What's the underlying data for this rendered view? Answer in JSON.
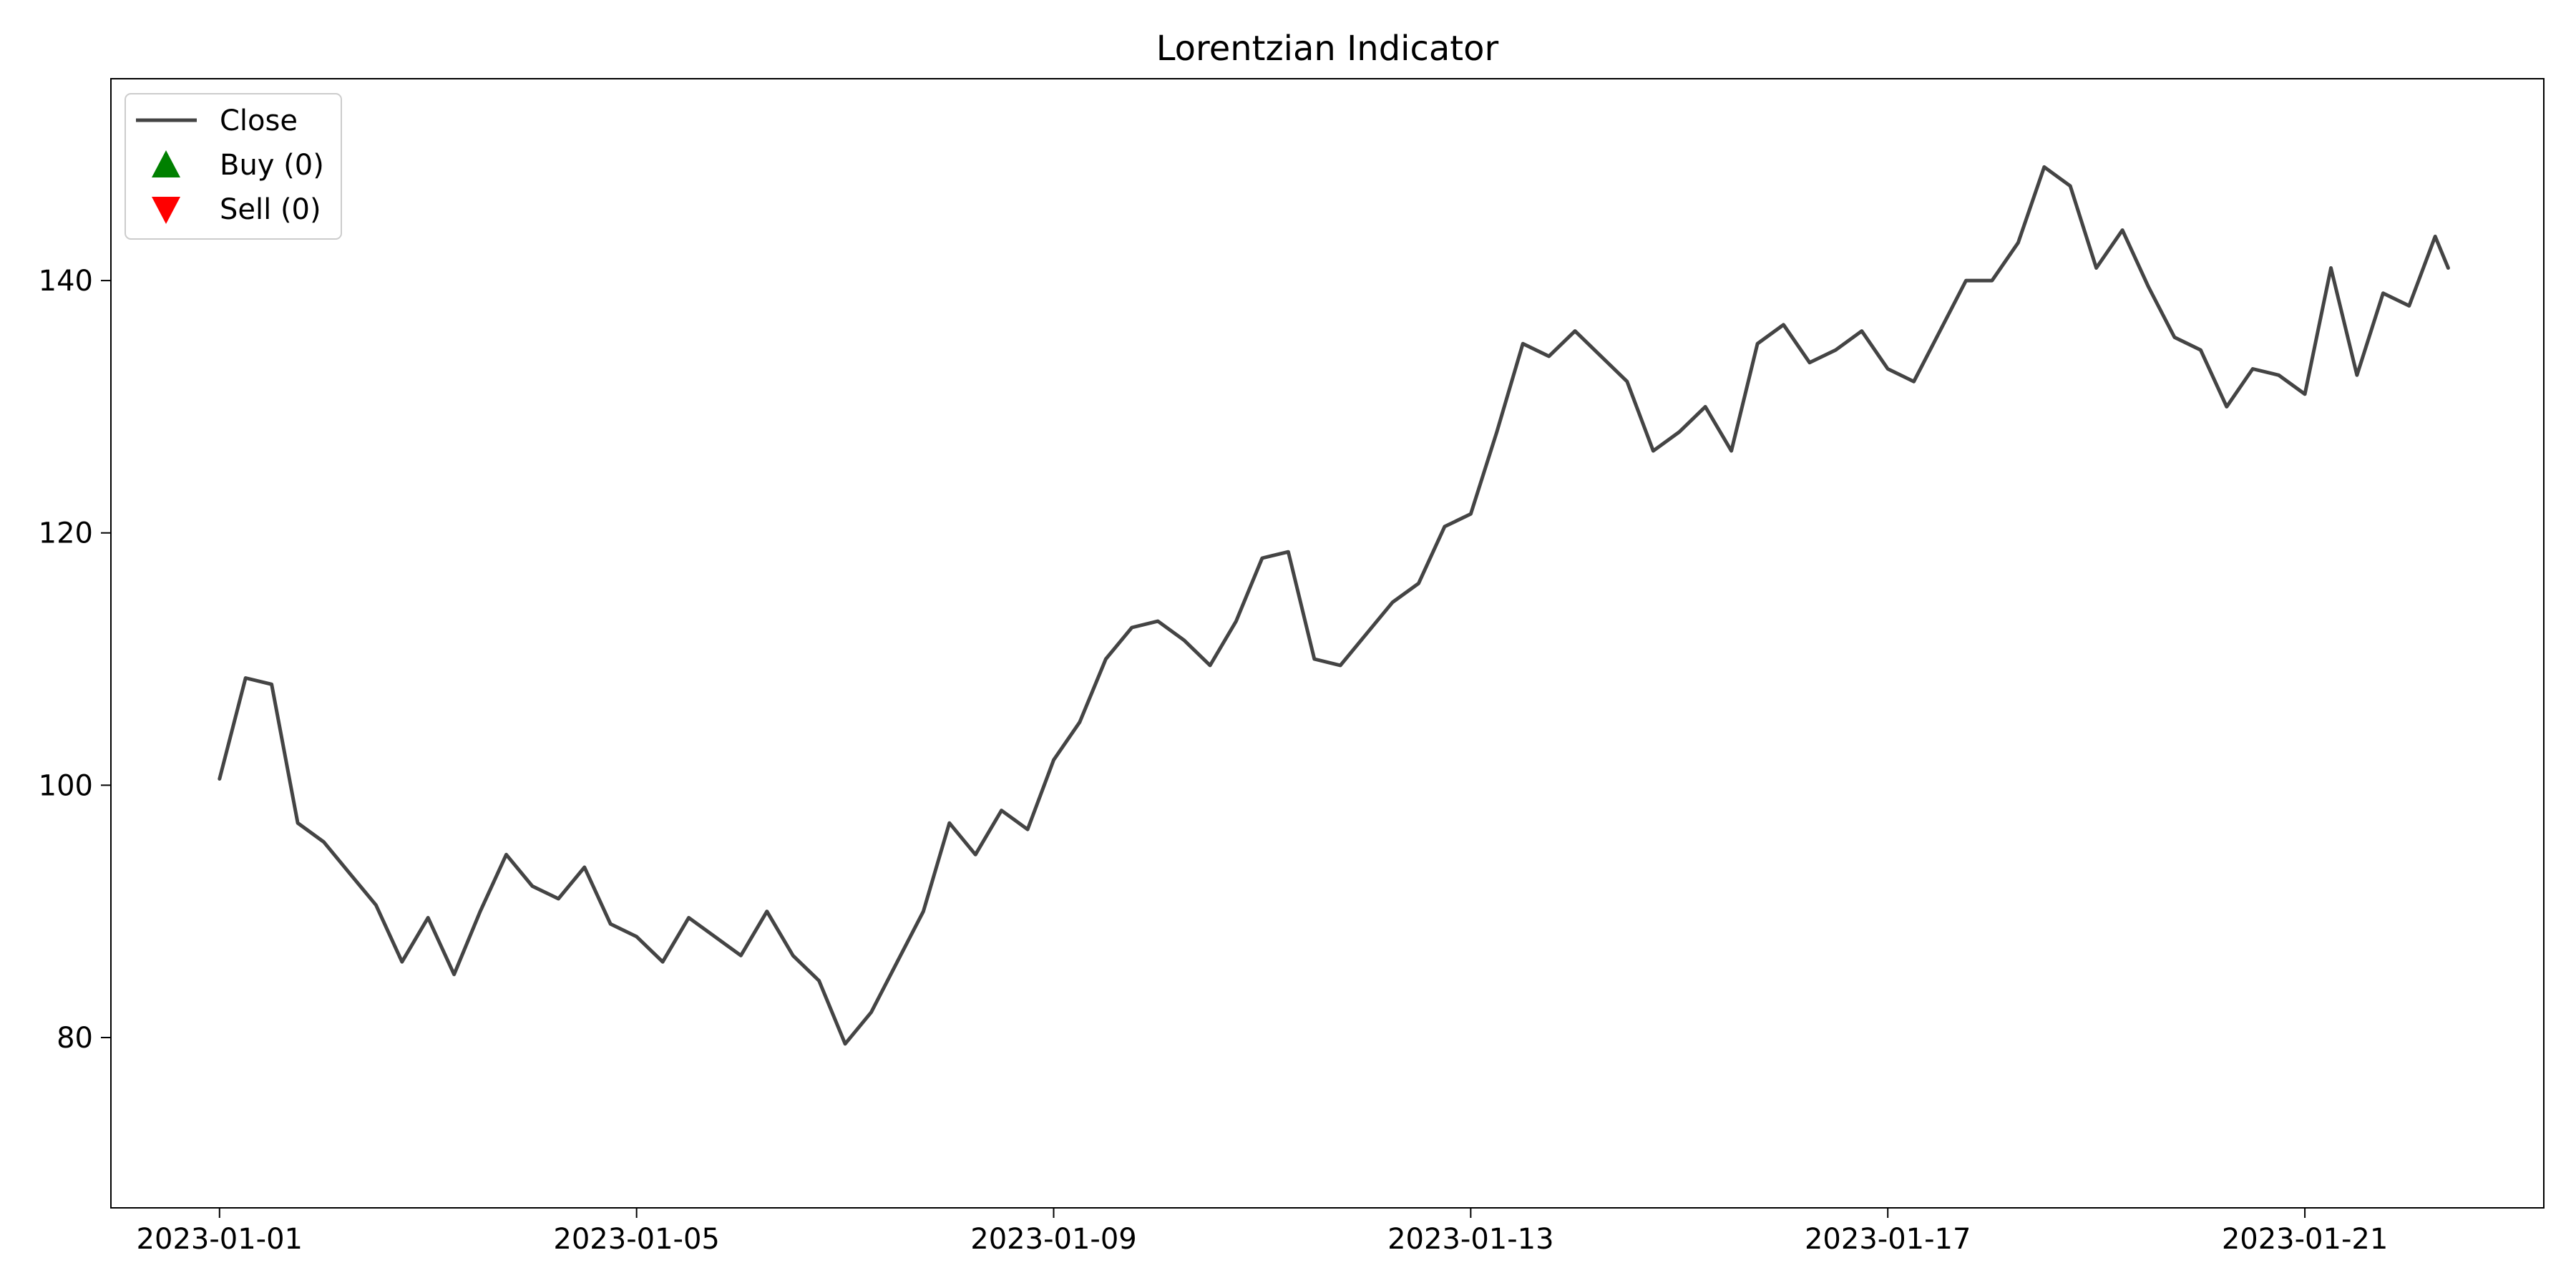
{
  "chart_data": {
    "type": "line",
    "title": "Lorentzian Indicator",
    "xlabel": "",
    "ylabel": "",
    "grid": false,
    "legend_position": "top-left",
    "x_ticks": [
      "2023-01-01",
      "2023-01-05",
      "2023-01-09",
      "2023-01-13",
      "2023-01-17",
      "2023-01-21"
    ],
    "y_ticks": [
      80,
      100,
      120,
      140
    ],
    "xlim": [
      "2022-12-30 23:00",
      "2023-01-23 07:00"
    ],
    "ylim": [
      66.5,
      156.0
    ],
    "x": [
      "2023-01-01 00:00",
      "2023-01-01 06:00",
      "2023-01-01 12:00",
      "2023-01-01 18:00",
      "2023-01-02 00:00",
      "2023-01-02 06:00",
      "2023-01-02 12:00",
      "2023-01-02 18:00",
      "2023-01-03 00:00",
      "2023-01-03 06:00",
      "2023-01-03 12:00",
      "2023-01-03 18:00",
      "2023-01-04 00:00",
      "2023-01-04 06:00",
      "2023-01-04 12:00",
      "2023-01-04 18:00",
      "2023-01-05 00:00",
      "2023-01-05 06:00",
      "2023-01-05 12:00",
      "2023-01-05 18:00",
      "2023-01-06 00:00",
      "2023-01-06 06:00",
      "2023-01-06 12:00",
      "2023-01-06 18:00",
      "2023-01-07 00:00",
      "2023-01-07 06:00",
      "2023-01-07 12:00",
      "2023-01-07 18:00",
      "2023-01-08 00:00",
      "2023-01-08 06:00",
      "2023-01-08 12:00",
      "2023-01-08 18:00",
      "2023-01-09 00:00",
      "2023-01-09 06:00",
      "2023-01-09 12:00",
      "2023-01-09 18:00",
      "2023-01-10 00:00",
      "2023-01-10 06:00",
      "2023-01-10 12:00",
      "2023-01-10 18:00",
      "2023-01-11 00:00",
      "2023-01-11 06:00",
      "2023-01-11 12:00",
      "2023-01-11 18:00",
      "2023-01-12 00:00",
      "2023-01-12 06:00",
      "2023-01-12 12:00",
      "2023-01-12 18:00",
      "2023-01-13 00:00",
      "2023-01-13 06:00",
      "2023-01-13 12:00",
      "2023-01-13 18:00",
      "2023-01-14 00:00",
      "2023-01-14 06:00",
      "2023-01-14 12:00",
      "2023-01-14 18:00",
      "2023-01-15 00:00",
      "2023-01-15 06:00",
      "2023-01-15 12:00",
      "2023-01-15 18:00",
      "2023-01-16 00:00",
      "2023-01-16 06:00",
      "2023-01-16 12:00",
      "2023-01-16 18:00",
      "2023-01-17 00:00",
      "2023-01-17 06:00",
      "2023-01-17 12:00",
      "2023-01-17 18:00",
      "2023-01-18 00:00",
      "2023-01-18 06:00",
      "2023-01-18 12:00",
      "2023-01-18 18:00",
      "2023-01-19 00:00",
      "2023-01-19 06:00",
      "2023-01-19 12:00",
      "2023-01-19 18:00",
      "2023-01-20 00:00",
      "2023-01-20 06:00",
      "2023-01-20 12:00",
      "2023-01-20 18:00",
      "2023-01-21 00:00",
      "2023-01-21 06:00",
      "2023-01-21 12:00",
      "2023-01-21 18:00",
      "2023-01-22 00:00",
      "2023-01-22 06:00",
      "2023-01-22 09:00"
    ],
    "series": [
      {
        "name": "Close",
        "color": "#444444",
        "values": [
          100.5,
          108.5,
          108.0,
          97.0,
          95.5,
          93.0,
          90.5,
          86.0,
          89.5,
          85.0,
          90.0,
          94.5,
          92.0,
          91.0,
          93.5,
          89.0,
          88.0,
          86.0,
          89.5,
          88.0,
          86.5,
          90.0,
          86.5,
          84.5,
          79.5,
          82.0,
          86.0,
          90.0,
          97.0,
          94.5,
          98.0,
          96.5,
          102.0,
          105.0,
          110.0,
          112.5,
          113.0,
          111.5,
          109.5,
          113.0,
          118.0,
          118.5,
          110.0,
          109.5,
          112.0,
          114.5,
          116.0,
          120.5,
          121.5,
          128.0,
          135.0,
          134.0,
          136.0,
          134.0,
          132.0,
          126.5,
          128.0,
          130.0,
          126.5,
          135.0,
          136.5,
          133.5,
          134.5,
          136.0,
          133.0,
          132.0,
          136.0,
          140.0,
          140.0,
          143.0,
          149.0,
          147.5,
          141.0,
          144.0,
          139.5,
          135.5,
          134.5,
          130.0,
          133.0,
          132.5,
          131.0,
          141.0,
          132.5,
          139.0,
          138.0,
          143.5,
          141.0
        ]
      }
    ],
    "legend": [
      {
        "label": "Close",
        "marker": "line",
        "color": "#444444"
      },
      {
        "label": "Buy (0)",
        "marker": "triangle-up",
        "color": "#008000"
      },
      {
        "label": "Sell (0)",
        "marker": "triangle-down",
        "color": "#ff0000"
      }
    ],
    "buy_signals": [],
    "sell_signals": []
  }
}
